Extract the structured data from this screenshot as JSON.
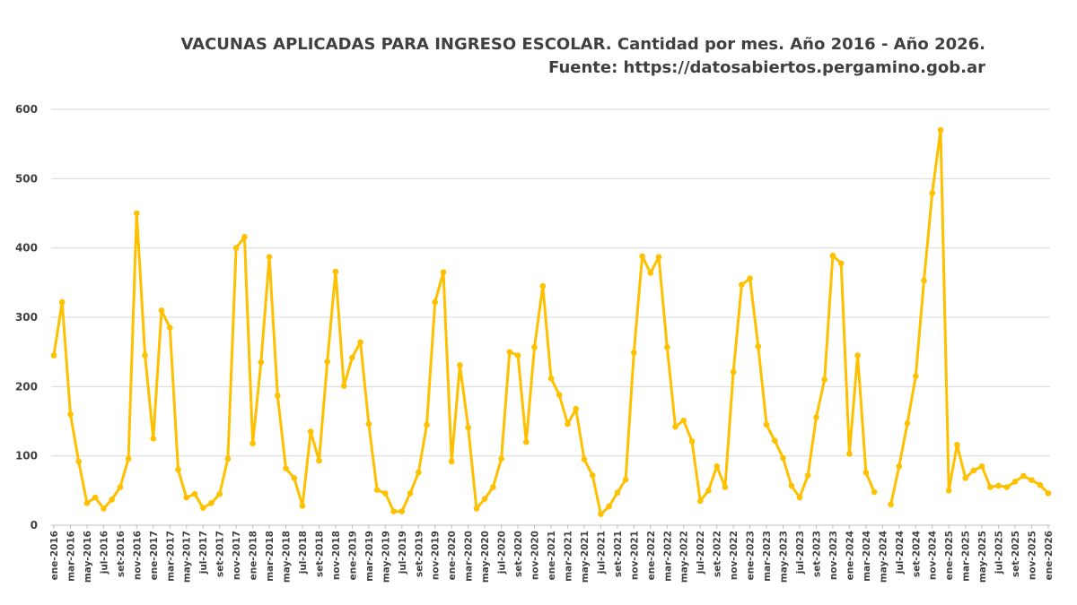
{
  "chart_data": {
    "type": "line",
    "title": "VACUNAS APLICADAS PARA INGRESO ESCOLAR. Cantidad por mes. Año 2016 - Año 2026.",
    "subtitle": "Fuente: https://datosabiertos.pergamino.gob.ar",
    "xlabel": "",
    "ylabel": "",
    "ylim": [
      0,
      600
    ],
    "yticks": [
      0,
      100,
      200,
      300,
      400,
      500,
      600
    ],
    "grid": true,
    "line_color": "#FFC000",
    "x_tick_labels": [
      "ene-2016",
      "mar-2016",
      "may-2016",
      "jul-2016",
      "set-2016",
      "nov-2016",
      "ene-2017",
      "mar-2017",
      "may-2017",
      "jul-2017",
      "set-2017",
      "nov-2017",
      "ene-2018",
      "mar-2018",
      "may-2018",
      "jul-2018",
      "set-2018",
      "nov-2018",
      "ene-2019",
      "mar-2019",
      "may-2019",
      "jul-2019",
      "set-2019",
      "nov-2019",
      "ene-2020",
      "mar-2020",
      "may-2020",
      "jul-2020",
      "set-2020",
      "nov-2020",
      "ene-2021",
      "mar-2021",
      "may-2021",
      "jul-2021",
      "set-2021",
      "nov-2021",
      "ene-2022",
      "mar-2022",
      "may-2022",
      "jul-2022",
      "set-2022",
      "nov-2022",
      "ene-2023",
      "mar-2023",
      "may-2023",
      "jul-2023",
      "set-2023",
      "nov-2023",
      "ene-2024",
      "mar-2024",
      "may-2024",
      "jul-2024",
      "set-2024",
      "nov-2024",
      "ene-2025",
      "mar-2025",
      "may-2025",
      "jul-2025",
      "set-2025",
      "nov-2025",
      "ene-2026"
    ],
    "series": [
      {
        "values": [
          245,
          322,
          160,
          92,
          32,
          40,
          24,
          37,
          55,
          96,
          450,
          245,
          125,
          310,
          285,
          80,
          40,
          45,
          25,
          32,
          45,
          96,
          400,
          416,
          118,
          235,
          387,
          187,
          82,
          68,
          28,
          135,
          93,
          236,
          366,
          201,
          242,
          264,
          146,
          51,
          46,
          20,
          20,
          46,
          76,
          145,
          322,
          365,
          92,
          231,
          141,
          24,
          38,
          55,
          96,
          250,
          245,
          120,
          257,
          345,
          212,
          188,
          146,
          168,
          95,
          72,
          16,
          27,
          47,
          66,
          249,
          388,
          364,
          387,
          257,
          142,
          151,
          121,
          35,
          50,
          85,
          55,
          221,
          347,
          356,
          258,
          145,
          122,
          97,
          57,
          40,
          72,
          156,
          210,
          389,
          378,
          103,
          245,
          76,
          48,
          null,
          30,
          85,
          147,
          215,
          353,
          479,
          570,
          50,
          116,
          68,
          79,
          85,
          55,
          57,
          55,
          63,
          71,
          65,
          58,
          46
        ]
      }
    ]
  }
}
